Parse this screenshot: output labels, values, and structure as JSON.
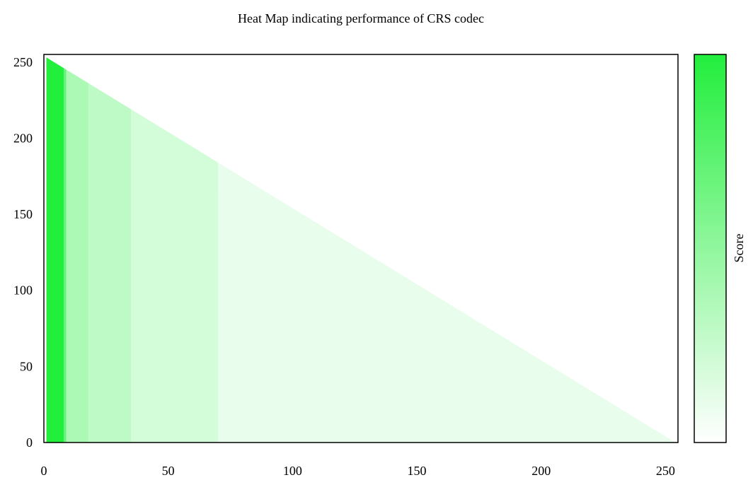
{
  "chart_data": {
    "type": "heatmap",
    "title": "Heat Map indicating performance of CRS codec",
    "xlabel": "",
    "ylabel": "",
    "xlim": [
      0,
      255
    ],
    "ylim": [
      0,
      255
    ],
    "x_ticks": [
      0,
      50,
      100,
      150,
      200,
      250
    ],
    "y_ticks": [
      0,
      50,
      100,
      150,
      200,
      250
    ],
    "colorbar": {
      "label": "Score",
      "color_low": "#ffffff",
      "color_high": "#22ee3c"
    },
    "region": "triangular: data present where x + y <= 254",
    "column_scores": [
      {
        "x_from": 1,
        "x_to": 8,
        "score": 1.0
      },
      {
        "x_from": 8,
        "x_to": 9,
        "score": 0.7
      },
      {
        "x_from": 9,
        "x_to": 18,
        "score": 0.38
      },
      {
        "x_from": 18,
        "x_to": 35,
        "score": 0.3
      },
      {
        "x_from": 35,
        "x_to": 70,
        "score": 0.2
      },
      {
        "x_from": 70,
        "x_to": 254,
        "score": 0.1
      }
    ],
    "grid": false,
    "legend": "colorbar-right"
  }
}
